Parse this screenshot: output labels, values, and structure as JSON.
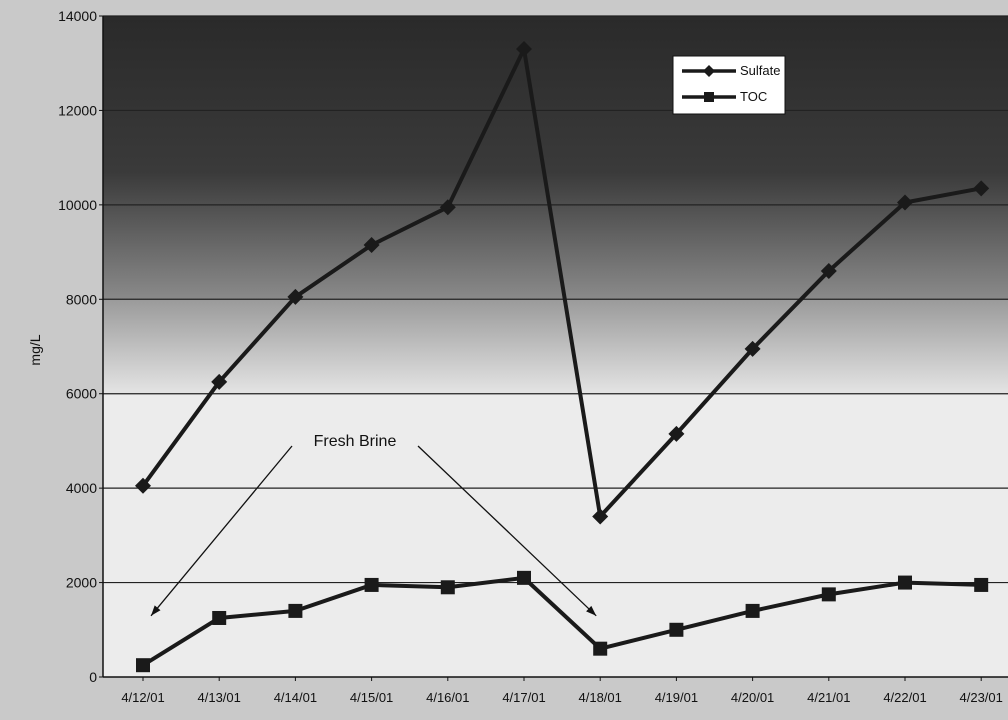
{
  "chart_data": {
    "type": "line",
    "title": "",
    "xlabel": "",
    "ylabel": "mg/L",
    "ylim": [
      0,
      14000
    ],
    "yticks": [
      0,
      2000,
      4000,
      6000,
      8000,
      10000,
      12000,
      14000
    ],
    "grid": true,
    "legend_position": "top-right",
    "categories": [
      "4/12/01",
      "4/13/01",
      "4/14/01",
      "4/15/01",
      "4/16/01",
      "4/17/01",
      "4/18/01",
      "4/19/01",
      "4/20/01",
      "4/21/01",
      "4/22/01",
      "4/23/01"
    ],
    "series": [
      {
        "name": "Sulfate",
        "marker": "diamond",
        "color": "#1a1a1a",
        "values": [
          4050,
          6250,
          8050,
          9150,
          9950,
          13300,
          3400,
          5150,
          6950,
          8600,
          10050,
          10350
        ]
      },
      {
        "name": "TOC",
        "marker": "square",
        "color": "#1a1a1a",
        "values": [
          250,
          1250,
          1400,
          1950,
          1900,
          2100,
          600,
          1000,
          1400,
          1750,
          2000,
          1950
        ]
      }
    ],
    "annotations": [
      {
        "text": "Fresh Brine",
        "points_to": [
          "4/12/01",
          "4/18/01"
        ]
      }
    ]
  },
  "colors": {
    "background": "#c9c9c9",
    "gridline": "#222222",
    "line": "#1a1a1a",
    "legend_bg": "#ffffff"
  }
}
